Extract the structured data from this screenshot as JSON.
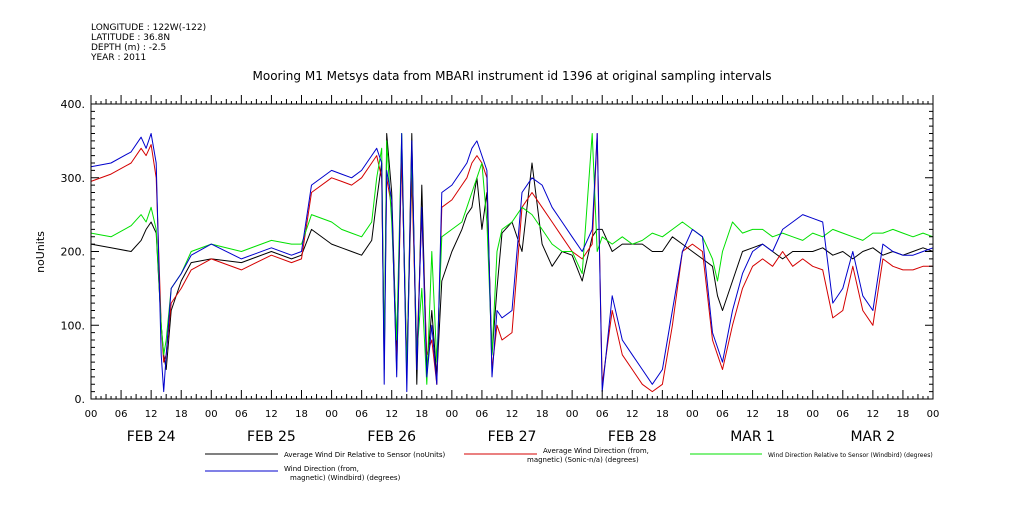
{
  "header": {
    "meta_lines": [
      "LONGITUDE : 122W(-122)",
      "LATITUDE : 36.8N",
      "DEPTH (m) : -2.5",
      "YEAR : 2011"
    ]
  },
  "chart_data": {
    "type": "line",
    "title": "Mooring M1 Metsys data from MBARI instrument id 1396 at original sampling intervals",
    "ylabel": "noUnits",
    "xlabel": "",
    "ylim": [
      0,
      400
    ],
    "yticks": [
      "0.",
      "100.",
      "200.",
      "300.",
      "400."
    ],
    "x_unit": "hours since FEB 24 00:00",
    "xlim": [
      0,
      168
    ],
    "hour_labels": [
      "00",
      "06",
      "12",
      "18",
      "00",
      "06",
      "12",
      "18",
      "00",
      "06",
      "12",
      "18",
      "00",
      "06",
      "12",
      "18",
      "00",
      "06",
      "12",
      "18",
      "00",
      "06",
      "12",
      "18",
      "00",
      "06",
      "12",
      "18",
      "00"
    ],
    "day_labels": [
      "FEB 24",
      "FEB 25",
      "FEB 26",
      "FEB 27",
      "FEB 28",
      "MAR  1",
      "MAR  2"
    ],
    "grid": false,
    "legend_placement": "bottom",
    "series": [
      {
        "name": "Average Wind Dir Relative to Sensor (noUnits)",
        "color": "#000000",
        "x": [
          0,
          4,
          8,
          10,
          11,
          12,
          13,
          14,
          14.5,
          15,
          16,
          18,
          20,
          24,
          30,
          36,
          40,
          42,
          44,
          48,
          50,
          52,
          54,
          56,
          57,
          58,
          58.5,
          59,
          60,
          61,
          62,
          63,
          64,
          65,
          66,
          67,
          68,
          69,
          70,
          72,
          74,
          75,
          76,
          77,
          78,
          79,
          80,
          81,
          82,
          84,
          86,
          88,
          90,
          92,
          94,
          96,
          98,
          100,
          101,
          102,
          104,
          106,
          108,
          110,
          112,
          114,
          116,
          118,
          120,
          122,
          124,
          125,
          126,
          128,
          130,
          132,
          134,
          136,
          138,
          140,
          142,
          144,
          146,
          148,
          150,
          152,
          154,
          156,
          158,
          160,
          162,
          164,
          166,
          168
        ],
        "y": [
          210,
          205,
          200,
          215,
          230,
          240,
          225,
          100,
          60,
          40,
          120,
          160,
          185,
          190,
          185,
          200,
          190,
          195,
          230,
          210,
          205,
          200,
          195,
          215,
          270,
          320,
          40,
          360,
          280,
          60,
          340,
          30,
          360,
          20,
          290,
          40,
          120,
          30,
          160,
          200,
          230,
          250,
          260,
          300,
          230,
          280,
          60,
          150,
          225,
          240,
          200,
          320,
          210,
          180,
          200,
          195,
          160,
          220,
          230,
          230,
          200,
          210,
          210,
          210,
          200,
          200,
          220,
          210,
          200,
          190,
          180,
          140,
          120,
          160,
          200,
          205,
          210,
          200,
          190,
          200,
          200,
          200,
          205,
          195,
          200,
          190,
          200,
          205,
          195,
          200,
          195,
          200,
          205,
          200
        ]
      },
      {
        "name": "Average Wind Direction (from, magnetic) (Sonic-n/a) (degrees)",
        "color": "#d40000",
        "x": [
          0,
          4,
          8,
          10,
          11,
          12,
          13,
          14,
          14.5,
          15,
          16,
          18,
          20,
          24,
          30,
          36,
          40,
          42,
          44,
          48,
          50,
          52,
          54,
          56,
          57,
          58,
          58.5,
          59,
          60,
          61,
          62,
          63,
          64,
          65,
          66,
          67,
          68,
          69,
          70,
          72,
          74,
          75,
          76,
          77,
          78,
          79,
          80,
          81,
          82,
          84,
          86,
          88,
          90,
          92,
          94,
          96,
          98,
          100,
          101,
          102,
          104,
          106,
          108,
          110,
          112,
          114,
          116,
          118,
          120,
          122,
          124,
          125,
          126,
          128,
          130,
          132,
          134,
          136,
          138,
          140,
          142,
          144,
          146,
          148,
          150,
          152,
          154,
          156,
          158,
          160,
          162,
          164,
          166,
          168
        ],
        "y": [
          295,
          305,
          320,
          340,
          330,
          345,
          300,
          100,
          50,
          60,
          130,
          150,
          175,
          190,
          175,
          195,
          185,
          190,
          280,
          300,
          295,
          290,
          300,
          320,
          330,
          300,
          60,
          300,
          260,
          40,
          330,
          50,
          300,
          60,
          250,
          60,
          80,
          20,
          260,
          270,
          290,
          300,
          320,
          330,
          320,
          300,
          40,
          100,
          80,
          90,
          260,
          280,
          260,
          240,
          220,
          200,
          190,
          210,
          360,
          20,
          120,
          60,
          40,
          20,
          10,
          20,
          100,
          200,
          210,
          200,
          80,
          60,
          40,
          100,
          150,
          180,
          190,
          180,
          200,
          180,
          190,
          180,
          175,
          110,
          120,
          180,
          120,
          100,
          190,
          180,
          175,
          175,
          180,
          180
        ]
      },
      {
        "name": "Wind Direction Relative to Sensor (Windbird) (degrees)",
        "color": "#00e000",
        "x": [
          0,
          4,
          8,
          10,
          11,
          12,
          13,
          14,
          14.5,
          15,
          16,
          18,
          20,
          24,
          30,
          36,
          40,
          42,
          44,
          48,
          50,
          52,
          54,
          56,
          57,
          58,
          58.5,
          59,
          60,
          61,
          62,
          63,
          64,
          65,
          66,
          67,
          68,
          69,
          70,
          72,
          74,
          75,
          76,
          77,
          78,
          79,
          80,
          81,
          82,
          84,
          86,
          88,
          90,
          92,
          94,
          96,
          98,
          100,
          101,
          102,
          104,
          106,
          108,
          110,
          112,
          114,
          116,
          118,
          120,
          122,
          124,
          125,
          126,
          128,
          130,
          132,
          134,
          136,
          138,
          140,
          142,
          144,
          146,
          148,
          150,
          152,
          154,
          156,
          158,
          160,
          162,
          164,
          166,
          168
        ],
        "y": [
          225,
          220,
          235,
          250,
          240,
          260,
          230,
          100,
          60,
          80,
          150,
          170,
          200,
          210,
          200,
          215,
          210,
          210,
          250,
          240,
          230,
          225,
          220,
          240,
          300,
          340,
          60,
          350,
          240,
          80,
          360,
          40,
          330,
          60,
          150,
          20,
          200,
          50,
          220,
          230,
          240,
          260,
          280,
          300,
          320,
          240,
          60,
          200,
          230,
          240,
          260,
          250,
          230,
          210,
          200,
          200,
          170,
          360,
          200,
          220,
          210,
          220,
          210,
          215,
          225,
          220,
          230,
          240,
          230,
          220,
          190,
          160,
          200,
          240,
          225,
          230,
          230,
          220,
          225,
          220,
          215,
          225,
          220,
          230,
          225,
          220,
          215,
          225,
          225,
          230,
          225,
          220,
          225,
          220
        ]
      },
      {
        "name": "Wind Direction (from, magnetic) (Windbird) (degrees)",
        "color": "#0000cc",
        "x": [
          0,
          4,
          8,
          10,
          11,
          12,
          13,
          14,
          14.5,
          15,
          16,
          18,
          20,
          24,
          30,
          36,
          40,
          42,
          44,
          48,
          50,
          52,
          54,
          56,
          57,
          58,
          58.5,
          59,
          60,
          61,
          62,
          63,
          64,
          65,
          66,
          67,
          68,
          69,
          70,
          72,
          74,
          75,
          76,
          77,
          78,
          79,
          80,
          81,
          82,
          84,
          86,
          88,
          90,
          92,
          94,
          96,
          98,
          100,
          101,
          102,
          104,
          106,
          108,
          110,
          112,
          114,
          116,
          118,
          120,
          122,
          124,
          125,
          126,
          128,
          130,
          132,
          134,
          136,
          138,
          140,
          142,
          144,
          146,
          148,
          150,
          152,
          154,
          156,
          158,
          160,
          162,
          164,
          166,
          168
        ],
        "y": [
          315,
          320,
          335,
          355,
          340,
          360,
          320,
          60,
          10,
          60,
          150,
          170,
          195,
          210,
          190,
          205,
          195,
          200,
          290,
          310,
          305,
          300,
          310,
          330,
          340,
          320,
          20,
          310,
          270,
          30,
          360,
          10,
          350,
          40,
          260,
          30,
          100,
          20,
          280,
          290,
          310,
          320,
          340,
          350,
          330,
          310,
          30,
          120,
          110,
          120,
          280,
          300,
          290,
          260,
          240,
          220,
          200,
          230,
          360,
          10,
          140,
          80,
          60,
          40,
          20,
          40,
          120,
          200,
          230,
          220,
          90,
          70,
          50,
          120,
          170,
          200,
          210,
          200,
          230,
          240,
          250,
          245,
          240,
          130,
          150,
          200,
          140,
          120,
          210,
          200,
          195,
          195,
          200,
          205
        ]
      }
    ]
  }
}
